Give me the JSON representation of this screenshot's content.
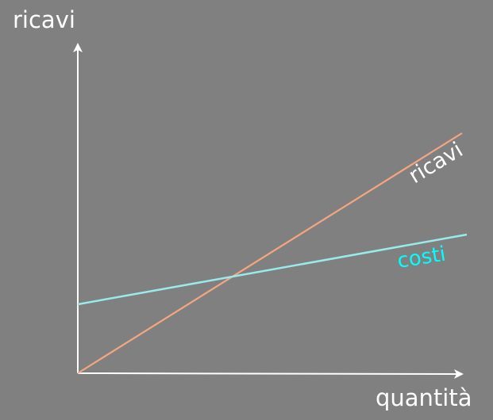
{
  "colors": {
    "background": "#808080",
    "axis": "#ffffff",
    "ricavi_line": "#f4a582",
    "costi_line": "#99eaea",
    "ricavi_label": "#ffffff",
    "costi_label": "#00ffff"
  },
  "diagram": {
    "y_axis_label": "ricavi",
    "x_axis_label": "quantità",
    "lines": [
      {
        "id": "ricavi",
        "label": "ricavi"
      },
      {
        "id": "costi",
        "label": "costi"
      }
    ]
  }
}
